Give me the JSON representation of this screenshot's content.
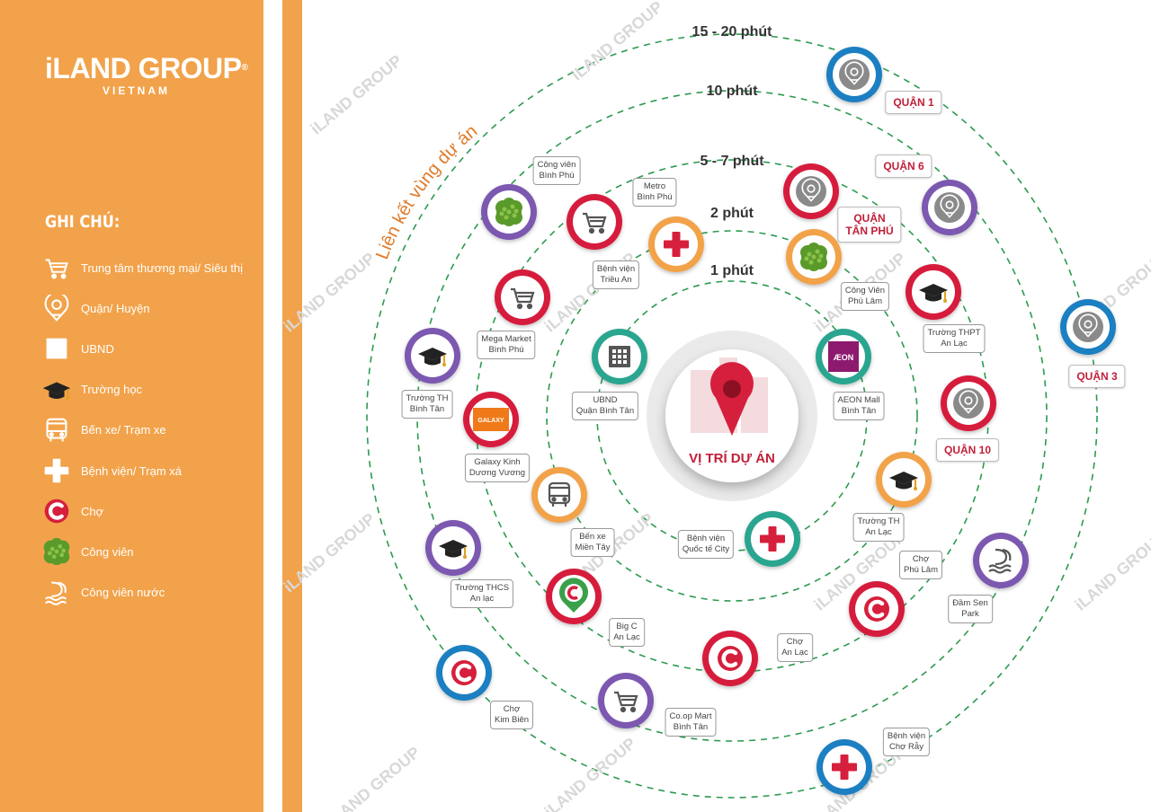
{
  "brand": {
    "name": "iLAND GROUP",
    "registered": "®",
    "sub": "VIETNAM"
  },
  "legend": {
    "title": "GHI CHÚ:",
    "items": [
      {
        "label": "Trung tâm thương mại/ Siêu thị",
        "icon": "cart-icon"
      },
      {
        "label": "Quận/ Huyện",
        "icon": "district-pin-icon"
      },
      {
        "label": "UBND",
        "icon": "building-icon"
      },
      {
        "label": "Trường học",
        "icon": "graduation-cap-icon"
      },
      {
        "label": "Bến xe/ Trạm xe",
        "icon": "bus-icon"
      },
      {
        "label": "Bệnh viện/ Trạm xá",
        "icon": "medical-cross-icon"
      },
      {
        "label": "Chợ",
        "icon": "market-c-icon"
      },
      {
        "label": "Công viên",
        "icon": "tree-icon"
      },
      {
        "label": "Công viên nước",
        "icon": "water-park-icon"
      }
    ]
  },
  "diagram": {
    "curved_title": "Liên kết vùng dự án",
    "center_label": "VỊ TRÍ DỰ ÁN",
    "rings": [
      "1 phút",
      "2 phút",
      "5 - 7 phút",
      "10 phút",
      "15 - 20 phút"
    ],
    "places": [
      {
        "name": "UBND\nQuận Bình Tân",
        "icon": "building-icon"
      },
      {
        "name": "AEON Mall\nBình Tân",
        "icon": "aeon-logo-icon",
        "logo_text": "ÆON"
      },
      {
        "name": "Bệnh viện\nQuốc tế City",
        "icon": "medical-cross-icon"
      },
      {
        "name": "Bệnh viện\nTriều An",
        "icon": "medical-cross-icon"
      },
      {
        "name": "Công Viên\nPhú Lâm",
        "icon": "tree-icon"
      },
      {
        "name": "Trường TH\nAn Lạc",
        "icon": "graduation-cap-icon"
      },
      {
        "name": "Bến xe\nMiền Tây",
        "icon": "bus-icon"
      },
      {
        "name": "Galaxy Kinh\nDương Vương",
        "icon": "galaxy-logo-icon",
        "logo_text": "GALAXY"
      },
      {
        "name": "Mega Market\nBình Phú",
        "icon": "cart-icon"
      },
      {
        "name": "Metro\nBình Phú",
        "icon": "cart-icon"
      },
      {
        "name": "Trường THPT\nAn Lạc",
        "icon": "graduation-cap-icon"
      },
      {
        "name": "Chợ\nAn Lạc",
        "icon": "market-c-icon"
      },
      {
        "name": "Big C\nAn Lạc",
        "icon": "bigc-logo-icon"
      },
      {
        "name": "Chợ\nPhú Lâm",
        "icon": "market-c-icon"
      },
      {
        "name": "Công viên\nBình Phú",
        "icon": "tree-icon"
      },
      {
        "name": "Trường TH\nBình Tân",
        "icon": "graduation-cap-icon"
      },
      {
        "name": "Trường THCS\nAn lạc",
        "icon": "graduation-cap-icon"
      },
      {
        "name": "Co.op Mart\nBình Tân",
        "icon": "cart-icon"
      },
      {
        "name": "Chợ\nKim Biên",
        "icon": "market-c-icon"
      },
      {
        "name": "Đầm Sen\nPark",
        "icon": "water-park-icon"
      },
      {
        "name": "Bệnh viện\nChợ Rẫy",
        "icon": "medical-cross-icon"
      }
    ],
    "districts": [
      "QUẬN 1",
      "QUẬN 6",
      "QUẬN\nTÂN PHÚ",
      "QUẬN 3",
      "QUẬN 10"
    ],
    "watermark": "iLAND GROUP"
  },
  "colors": {
    "orange": "#f2a24a",
    "red": "#d61f3c",
    "teal": "#2aa58f",
    "purple": "#7b58b0",
    "blue": "#1f7fc2",
    "dash_green": "#2c9a4f",
    "district_text": "#c0203a"
  }
}
